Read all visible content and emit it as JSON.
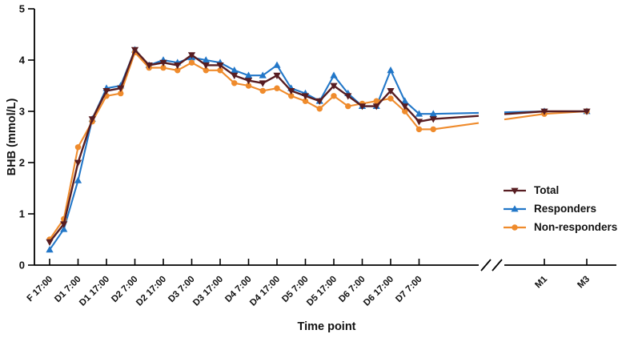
{
  "figure": {
    "background": "#ffffff",
    "ylabel": "BHB (mmol/L)",
    "xlabel": "Time point"
  },
  "chart_data": {
    "type": "line",
    "title": "",
    "xlabel": "Time point",
    "ylabel": "BHB (mmol/L)",
    "ylim": [
      0,
      5
    ],
    "y_ticks": [
      0,
      1,
      2,
      3,
      4,
      5
    ],
    "grid": false,
    "legend_position": "right-middle",
    "x_tick_labels": [
      "F 17:00",
      "D1 7:00",
      "D1 17:00",
      "D2 7:00",
      "D2 17:00",
      "D3 7:00",
      "D3 17:00",
      "D4 7:00",
      "D4 17:00",
      "D5 7:00",
      "D5 17:00",
      "D6 7:00",
      "D6 17:00",
      "D7 7:00"
    ],
    "x_axis_break_after": "D7 7:00",
    "post_break_x_labels": [
      "M1",
      "M3"
    ],
    "sampling_note": "series sampled at each labeled tick and midway between ticks (28 points), then after axis break at M1 and M3",
    "series": [
      {
        "name": "Total",
        "color": "#571d22",
        "marker": "triangle-down",
        "values": [
          0.45,
          0.8,
          2.0,
          2.85,
          3.4,
          3.45,
          4.2,
          3.9,
          3.95,
          3.9,
          4.1,
          3.9,
          3.9,
          3.7,
          3.6,
          3.55,
          3.7,
          3.4,
          3.3,
          3.2,
          3.5,
          3.3,
          3.1,
          3.1,
          3.4,
          3.1,
          2.8,
          2.85
        ],
        "M1": 3.0,
        "M3": 3.0
      },
      {
        "name": "Responders",
        "color": "#2277c8",
        "marker": "triangle-up",
        "values": [
          0.3,
          0.7,
          1.65,
          2.85,
          3.45,
          3.5,
          4.2,
          3.9,
          4.0,
          3.95,
          4.05,
          4.0,
          3.95,
          3.8,
          3.7,
          3.7,
          3.9,
          3.45,
          3.35,
          3.2,
          3.7,
          3.35,
          3.1,
          3.1,
          3.8,
          3.2,
          2.95,
          2.95
        ],
        "M1": 3.0,
        "M3": 3.0
      },
      {
        "name": "Non-responders",
        "color": "#ef8b2c",
        "marker": "circle",
        "values": [
          0.5,
          0.9,
          2.3,
          2.8,
          3.3,
          3.35,
          4.15,
          3.85,
          3.85,
          3.8,
          3.95,
          3.8,
          3.8,
          3.55,
          3.5,
          3.4,
          3.45,
          3.3,
          3.2,
          3.05,
          3.3,
          3.1,
          3.15,
          3.2,
          3.25,
          3.0,
          2.65,
          2.65
        ],
        "M1": 2.95,
        "M3": 3.0
      }
    ]
  }
}
